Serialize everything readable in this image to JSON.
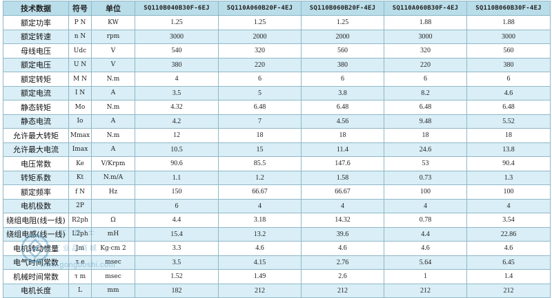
{
  "table": {
    "headers": {
      "param": "技术数据",
      "symbol": "符号",
      "unit": "单位",
      "models": [
        "SQ110B040B30F-6EJ",
        "SQ110A060B20F-4EJ",
        "SQ110B060B20F-4EJ",
        "SQ110A060B30F-4EJ",
        "SQ110B060B30F-4EJ"
      ]
    },
    "rows": [
      {
        "param": "额定功率",
        "symbol": "P N",
        "unit": "KW",
        "values": [
          "1.25",
          "1.25",
          "1.25",
          "1.88",
          "1.88"
        ]
      },
      {
        "param": "额定转速",
        "symbol": "n N",
        "unit": "rpm",
        "values": [
          "3000",
          "2000",
          "2000",
          "3000",
          "3000"
        ]
      },
      {
        "param": "母线电压",
        "symbol": "Udc",
        "unit": "V",
        "values": [
          "540",
          "320",
          "560",
          "320",
          "560"
        ]
      },
      {
        "param": "额定电压",
        "symbol": "U N",
        "unit": "V",
        "values": [
          "380",
          "220",
          "380",
          "220",
          "380"
        ]
      },
      {
        "param": "额定转矩",
        "symbol": "M N",
        "unit": "N.m",
        "values": [
          "4",
          "6",
          "6",
          "6",
          "6"
        ]
      },
      {
        "param": "额定电流",
        "symbol": "I N",
        "unit": "A",
        "values": [
          "3.5",
          "5",
          "3.8",
          "8.2",
          "4.6"
        ]
      },
      {
        "param": "静态转矩",
        "symbol": "Mo",
        "unit": "N.m",
        "values": [
          "4.32",
          "6.48",
          "6.48",
          "6.48",
          "6.48"
        ]
      },
      {
        "param": "静态电流",
        "symbol": "Io",
        "unit": "A",
        "values": [
          "4.2",
          "7",
          "4.56",
          "9.48",
          "5.52"
        ]
      },
      {
        "param": "允许最大转矩",
        "symbol": "Mmax",
        "unit": "N.m",
        "values": [
          "12",
          "18",
          "18",
          "18",
          "18"
        ]
      },
      {
        "param": "允许最大电流",
        "symbol": "Imax",
        "unit": "A",
        "values": [
          "10.5",
          "15",
          "11.4",
          "24.6",
          "13.8"
        ]
      },
      {
        "param": "电压常数",
        "symbol": "Ke",
        "unit": "V/Krpm",
        "values": [
          "90.6",
          "85.5",
          "147.6",
          "53",
          "90.4"
        ]
      },
      {
        "param": "转矩系数",
        "symbol": "Kt",
        "unit": "N.m/A",
        "values": [
          "1.1",
          "1.2",
          "1.58",
          "0.73",
          "1.3"
        ]
      },
      {
        "param": "额定频率",
        "symbol": "f N",
        "unit": "Hz",
        "values": [
          "150",
          "66.67",
          "66.67",
          "100",
          "100"
        ]
      },
      {
        "param": "电机极数",
        "symbol": "2P",
        "unit": "",
        "values": [
          "6",
          "4",
          "4",
          "4",
          "4"
        ]
      },
      {
        "param": "绕组电阻(线一线)",
        "symbol": "R2ph",
        "unit": "Ω",
        "values": [
          "4.4",
          "3.18",
          "14.32",
          "0.78",
          "3.54"
        ]
      },
      {
        "param": "绕组电感(线一线)",
        "symbol": "L2ph",
        "unit": "mH",
        "values": [
          "15.4",
          "13.2",
          "39.6",
          "4.4",
          "22.86"
        ]
      },
      {
        "param": "电机转动惯量",
        "symbol": "Jm",
        "unit": "Kg·cm 2",
        "values": [
          "3.3",
          "4.6",
          "4.6",
          "4.6",
          "4.6"
        ]
      },
      {
        "param": "电气时间常数",
        "symbol": "τ e",
        "unit": "msec",
        "values": [
          "3.5",
          "4.15",
          "2.76",
          "5.64",
          "6.45"
        ]
      },
      {
        "param": "机械时间常数",
        "symbol": "τ m",
        "unit": "msec",
        "values": [
          "1.52",
          "1.49",
          "2.6",
          "1",
          "1.4"
        ]
      },
      {
        "param": "电机长度",
        "symbol": "L",
        "unit": "mm",
        "values": [
          "182",
          "212",
          "212",
          "212",
          "212"
        ]
      }
    ]
  },
  "watermark": {
    "top_text": "工 控 士",
    "cn_text": "工业品商城",
    "en_text": "www.gongboshi.com"
  },
  "colors": {
    "header_bg": "#b9dde9",
    "stripe_bg": "#d9eef6",
    "border": "#8fb7c7",
    "watermark": "#2a7fb0"
  }
}
